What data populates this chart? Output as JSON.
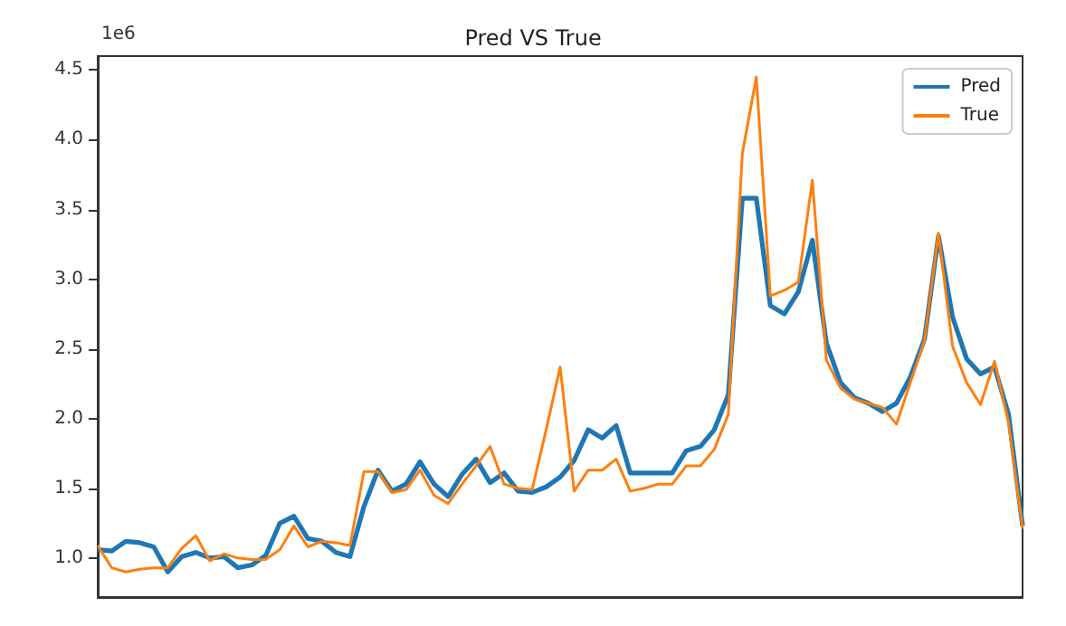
{
  "chart_data": {
    "type": "line",
    "title": "Pred VS True",
    "annotations": [
      "1e6"
    ],
    "categories": [
      null,
      null,
      null,
      null,
      null,
      null,
      null,
      null,
      null,
      null,
      null,
      null,
      null,
      null,
      null,
      null,
      null,
      null,
      null,
      null,
      null,
      null,
      null,
      null,
      null,
      null,
      null,
      null,
      null,
      null,
      null,
      null,
      null,
      null,
      null,
      null,
      null,
      null,
      null,
      null,
      null,
      null,
      null,
      null,
      null,
      null,
      null,
      null,
      null,
      null,
      null,
      null,
      null,
      null,
      null,
      null,
      null,
      null,
      null,
      null,
      null,
      null,
      null,
      null,
      null,
      null,
      null
    ],
    "series": [
      {
        "name": "Pred",
        "color": "#1f77b4",
        "values": [
          1.06,
          1.05,
          1.12,
          1.11,
          1.08,
          0.9,
          1.01,
          1.04,
          1.0,
          1.01,
          0.93,
          0.95,
          1.02,
          1.25,
          1.3,
          1.14,
          1.12,
          1.04,
          1.01,
          1.37,
          1.63,
          1.48,
          1.53,
          1.69,
          1.53,
          1.44,
          1.6,
          1.71,
          1.54,
          1.61,
          1.48,
          1.47,
          1.51,
          1.58,
          1.7,
          1.92,
          1.86,
          1.95,
          1.61,
          1.61,
          1.61,
          1.61,
          1.77,
          1.8,
          1.92,
          2.17,
          3.58,
          3.58,
          2.81,
          2.75,
          2.91,
          3.28,
          2.54,
          2.26,
          2.15,
          2.11,
          2.05,
          2.11,
          2.3,
          2.57,
          3.31,
          2.73,
          2.43,
          2.32,
          2.37,
          2.03,
          1.23
        ]
      },
      {
        "name": "True",
        "color": "#ff7f0e",
        "values": [
          1.09,
          0.93,
          0.9,
          0.92,
          0.93,
          0.93,
          1.07,
          1.16,
          0.98,
          1.03,
          1.0,
          0.99,
          0.99,
          1.06,
          1.23,
          1.08,
          1.12,
          1.11,
          1.09,
          1.62,
          1.62,
          1.47,
          1.49,
          1.63,
          1.45,
          1.39,
          1.53,
          1.66,
          1.8,
          1.53,
          1.5,
          1.49,
          1.92,
          2.37,
          1.48,
          1.63,
          1.63,
          1.71,
          1.48,
          1.5,
          1.53,
          1.53,
          1.66,
          1.66,
          1.78,
          2.03,
          3.9,
          4.45,
          2.88,
          2.92,
          2.98,
          3.71,
          2.42,
          2.22,
          2.14,
          2.11,
          2.08,
          1.96,
          2.26,
          2.56,
          3.33,
          2.52,
          2.26,
          2.1,
          2.41,
          1.97,
          1.21
        ]
      }
    ],
    "ylim": [
      0.72,
      4.6
    ],
    "yticks": [
      {
        "value": 1,
        "label": "1.0"
      },
      {
        "value": 1.5,
        "label": "1.5"
      },
      {
        "value": 2,
        "label": "2.0"
      },
      {
        "value": 2.5,
        "label": "2.5"
      },
      {
        "value": 3,
        "label": "3.0"
      },
      {
        "value": 3.5,
        "label": "3.5"
      },
      {
        "value": 4,
        "label": "4.0"
      },
      {
        "value": 4.5,
        "label": "4.5"
      }
    ],
    "tick_labels": "y",
    "legend": "top right",
    "grid": false
  }
}
